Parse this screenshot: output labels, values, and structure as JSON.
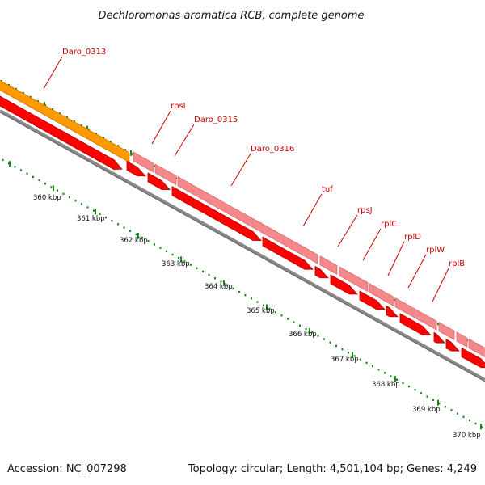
{
  "title": "Dechloromonas aromatica RCB, complete genome",
  "footer": {
    "accession": "Accession: NC_007298",
    "topology": "Topology: circular; Length: 4,501,104 bp; Genes: 4,249"
  },
  "colors": {
    "gene_fill": "#ff0000",
    "gene_outline": "#b00000",
    "feature_pink": "#f4888a",
    "feature_orange": "#ff9900",
    "backbone": "#888888",
    "tick": "#138a13",
    "label": "#cc0000"
  },
  "genes": [
    {
      "name": "Daro_0313"
    },
    {
      "name": "rpsL"
    },
    {
      "name": "Daro_0315"
    },
    {
      "name": "Daro_0316"
    },
    {
      "name": "tuf"
    },
    {
      "name": "rpsJ"
    },
    {
      "name": "rplC"
    },
    {
      "name": "rplD"
    },
    {
      "name": "rplW"
    },
    {
      "name": "rplB"
    }
  ],
  "scale_labels": [
    "360 kbp",
    "361 kbp",
    "362 kbp",
    "363 kbp",
    "364 kbp",
    "365 kbp",
    "366 kbp",
    "367 kbp",
    "368 kbp",
    "369 kbp",
    "370 kbp"
  ]
}
